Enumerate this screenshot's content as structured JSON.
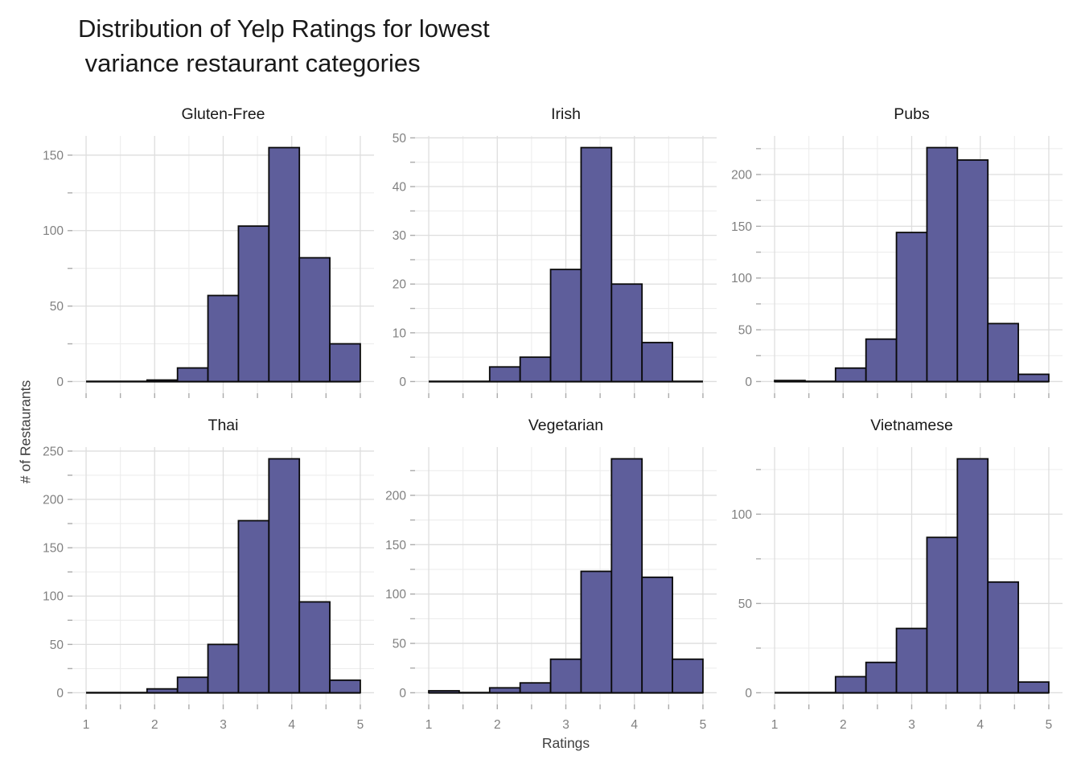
{
  "chart_data": {
    "type": "bar",
    "subtype": "faceted-histogram",
    "title": "Distribution of Yelp Ratings for lowest\n variance restaurant categories",
    "title_lines": [
      "Distribution of Yelp Ratings for lowest",
      " variance restaurant categories"
    ],
    "xlabel": "Ratings",
    "ylabel": "# of Restaurants",
    "x_tick_labels": [
      1,
      2,
      3,
      4,
      5
    ],
    "x_minor_ticks": [
      1.5,
      2.5,
      3.5,
      4.5
    ],
    "xlim": [
      0.8,
      5.2
    ],
    "bin_range": [
      1,
      5
    ],
    "n_bins": 9,
    "bin_centers_ratings": [
      1,
      1.5,
      2,
      2.5,
      3,
      3.5,
      4,
      4.5,
      5
    ],
    "grid": "major-and-minor",
    "legend": "none",
    "panels": [
      {
        "title": "Gluten-Free",
        "counts": [
          0,
          0,
          1,
          9,
          57,
          103,
          155,
          82,
          25
        ],
        "y_breaks": [
          0,
          50,
          100,
          150
        ]
      },
      {
        "title": "Irish",
        "counts": [
          0,
          0,
          3,
          5,
          23,
          48,
          20,
          8,
          0
        ],
        "y_breaks": [
          0,
          10,
          20,
          30,
          40,
          50
        ]
      },
      {
        "title": "Pubs",
        "counts": [
          1,
          0,
          13,
          41,
          144,
          226,
          214,
          56,
          7
        ],
        "y_breaks": [
          0,
          50,
          100,
          150,
          200
        ]
      },
      {
        "title": "Thai",
        "counts": [
          0,
          0,
          4,
          16,
          50,
          178,
          242,
          94,
          13
        ],
        "y_breaks": [
          0,
          50,
          100,
          150,
          200,
          250
        ]
      },
      {
        "title": "Vegetarian",
        "counts": [
          2,
          0,
          5,
          10,
          34,
          123,
          237,
          117,
          34
        ],
        "y_breaks": [
          0,
          50,
          100,
          150,
          200
        ]
      },
      {
        "title": "Vietnamese",
        "counts": [
          0,
          0,
          9,
          17,
          36,
          87,
          131,
          62,
          6
        ],
        "y_breaks": [
          0,
          50,
          100
        ]
      }
    ],
    "colors": {
      "bar_fill": "#5E5E9B",
      "bar_stroke": "#0a0a0a",
      "grid_major": "#DEDEDE",
      "grid_minor": "#EDEDED",
      "tick_mark": "#ABABAB",
      "tick_label": "#808080",
      "title_text": "#191919",
      "axis_title_text": "#404040",
      "background": "#ffffff"
    }
  }
}
